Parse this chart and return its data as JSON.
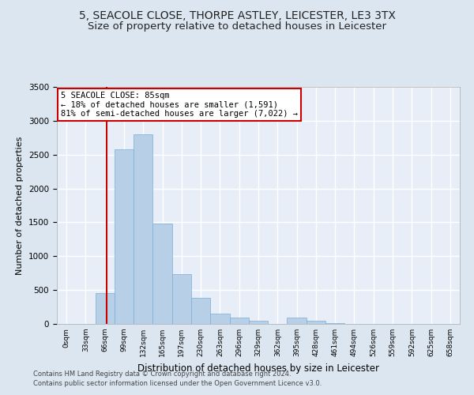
{
  "title_line1": "5, SEACOLE CLOSE, THORPE ASTLEY, LEICESTER, LE3 3TX",
  "title_line2": "Size of property relative to detached houses in Leicester",
  "xlabel": "Distribution of detached houses by size in Leicester",
  "ylabel": "Number of detached properties",
  "bin_labels": [
    "0sqm",
    "33sqm",
    "66sqm",
    "99sqm",
    "132sqm",
    "165sqm",
    "197sqm",
    "230sqm",
    "263sqm",
    "296sqm",
    "329sqm",
    "362sqm",
    "395sqm",
    "428sqm",
    "461sqm",
    "494sqm",
    "526sqm",
    "559sqm",
    "592sqm",
    "625sqm",
    "658sqm"
  ],
  "bar_values": [
    5,
    5,
    450,
    2575,
    2800,
    1480,
    740,
    385,
    150,
    95,
    50,
    5,
    95,
    45,
    8,
    3,
    0,
    0,
    0,
    0,
    0
  ],
  "bar_color": "#b8cfe8",
  "bar_edge_color": "#7aaed4",
  "vline_x": 2.6,
  "vline_color": "#cc0000",
  "annotation_text": "5 SEACOLE CLOSE: 85sqm\n← 18% of detached houses are smaller (1,591)\n81% of semi-detached houses are larger (7,022) →",
  "annotation_box_color": "#ffffff",
  "annotation_box_edge_color": "#cc0000",
  "ylim": [
    0,
    3500
  ],
  "yticks": [
    0,
    500,
    1000,
    1500,
    2000,
    2500,
    3000,
    3500
  ],
  "footer_line1": "Contains HM Land Registry data © Crown copyright and database right 2024.",
  "footer_line2": "Contains public sector information licensed under the Open Government Licence v3.0.",
  "bg_color": "#dce6f0",
  "plot_bg_color": "#e8eef8",
  "grid_color": "#ffffff",
  "title_fontsize": 10,
  "subtitle_fontsize": 9.5
}
